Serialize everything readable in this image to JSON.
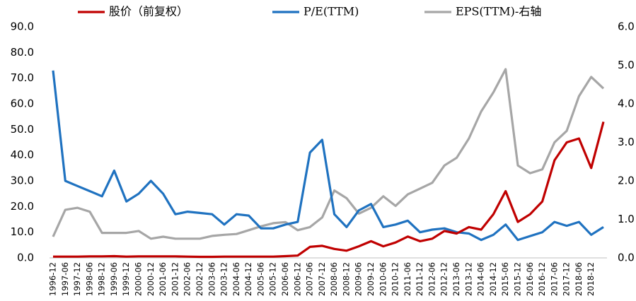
{
  "chart_data": {
    "type": "line",
    "categories": [
      "1996-12",
      "1997-06",
      "1997-12",
      "1998-06",
      "1998-12",
      "1999-06",
      "1999-12",
      "2000-06",
      "2000-12",
      "2001-06",
      "2001-12",
      "2002-06",
      "2002-12",
      "2003-06",
      "2003-12",
      "2004-06",
      "2004-12",
      "2005-06",
      "2005-12",
      "2006-06",
      "2006-12",
      "2007-06",
      "2007-12",
      "2008-06",
      "2008-12",
      "2009-06",
      "2009-12",
      "2010-06",
      "2010-12",
      "2011-06",
      "2011-12",
      "2012-06",
      "2012-12",
      "2013-06",
      "2013-12",
      "2014-06",
      "2014-12",
      "2015-06",
      "2015-12",
      "2016-06",
      "2016-12",
      "2017-06",
      "2017-12",
      "2018-06",
      "2018-12",
      null
    ],
    "series": [
      {
        "name": "股价（前复权）",
        "color": "#c00000",
        "values": [
          0.5,
          0.5,
          0.5,
          0.6,
          0.6,
          0.7,
          0.5,
          0.6,
          0.6,
          0.6,
          0.6,
          0.5,
          0.4,
          0.4,
          0.5,
          0.5,
          0.5,
          0.5,
          0.5,
          0.7,
          0.9,
          4.3,
          4.7,
          3.5,
          2.8,
          4.5,
          6.5,
          4.5,
          6,
          8.3,
          6.5,
          7.5,
          10.5,
          9.5,
          12,
          11,
          17,
          26,
          14,
          17,
          22,
          38,
          45,
          46.5,
          35,
          53
        ]
      },
      {
        "name": "P/E(TTM)",
        "color": "#1f72c0",
        "values": [
          73,
          30,
          28,
          26,
          24,
          34,
          22,
          25,
          30,
          25,
          17,
          18,
          17.5,
          17,
          13,
          17,
          16.5,
          11.5,
          11.5,
          13,
          14,
          41,
          46,
          17,
          12,
          18.5,
          21,
          12,
          13,
          14.5,
          10,
          11,
          11.5,
          10,
          9.5,
          7,
          9,
          13,
          7,
          8.5,
          10,
          14,
          12.5,
          14,
          9,
          12
        ]
      },
      {
        "name": "EPS(TTM)-右轴",
        "color": "#a6a6a6",
        "axis": "y2",
        "values": [
          0.55,
          1.25,
          1.3,
          1.2,
          0.65,
          0.65,
          0.65,
          0.7,
          0.5,
          0.55,
          0.5,
          0.5,
          0.5,
          0.57,
          0.6,
          0.62,
          0.72,
          0.82,
          0.9,
          0.93,
          0.72,
          0.8,
          1.05,
          1.75,
          1.55,
          1.15,
          1.3,
          1.6,
          1.35,
          1.65,
          1.8,
          1.95,
          2.4,
          2.6,
          3.1,
          3.8,
          4.3,
          4.9,
          2.4,
          2.2,
          2.3,
          3.0,
          3.3,
          4.2,
          4.7,
          4.4
        ]
      }
    ],
    "ylim": [
      0,
      90
    ],
    "yticks": [
      {
        "value": 0,
        "label": "0.0"
      },
      {
        "value": 10,
        "label": "10.0"
      },
      {
        "value": 20,
        "label": "20.0"
      },
      {
        "value": 30,
        "label": "30.0"
      },
      {
        "value": 40,
        "label": "40.0"
      },
      {
        "value": 50,
        "label": "50.0"
      },
      {
        "value": 60,
        "label": "60.0"
      },
      {
        "value": 70,
        "label": "70.0"
      },
      {
        "value": 80,
        "label": "80.0"
      },
      {
        "value": 90,
        "label": "90.0"
      }
    ],
    "y2lim": [
      0,
      6
    ],
    "y2ticks": [
      {
        "value": 0,
        "label": "0.0"
      },
      {
        "value": 1,
        "label": "1.0"
      },
      {
        "value": 2,
        "label": "2.0"
      },
      {
        "value": 3,
        "label": "3.0"
      },
      {
        "value": 4,
        "label": "4.0"
      },
      {
        "value": 5,
        "label": "5.0"
      },
      {
        "value": 6,
        "label": "6.0"
      }
    ],
    "grid": false,
    "legend": "top"
  }
}
